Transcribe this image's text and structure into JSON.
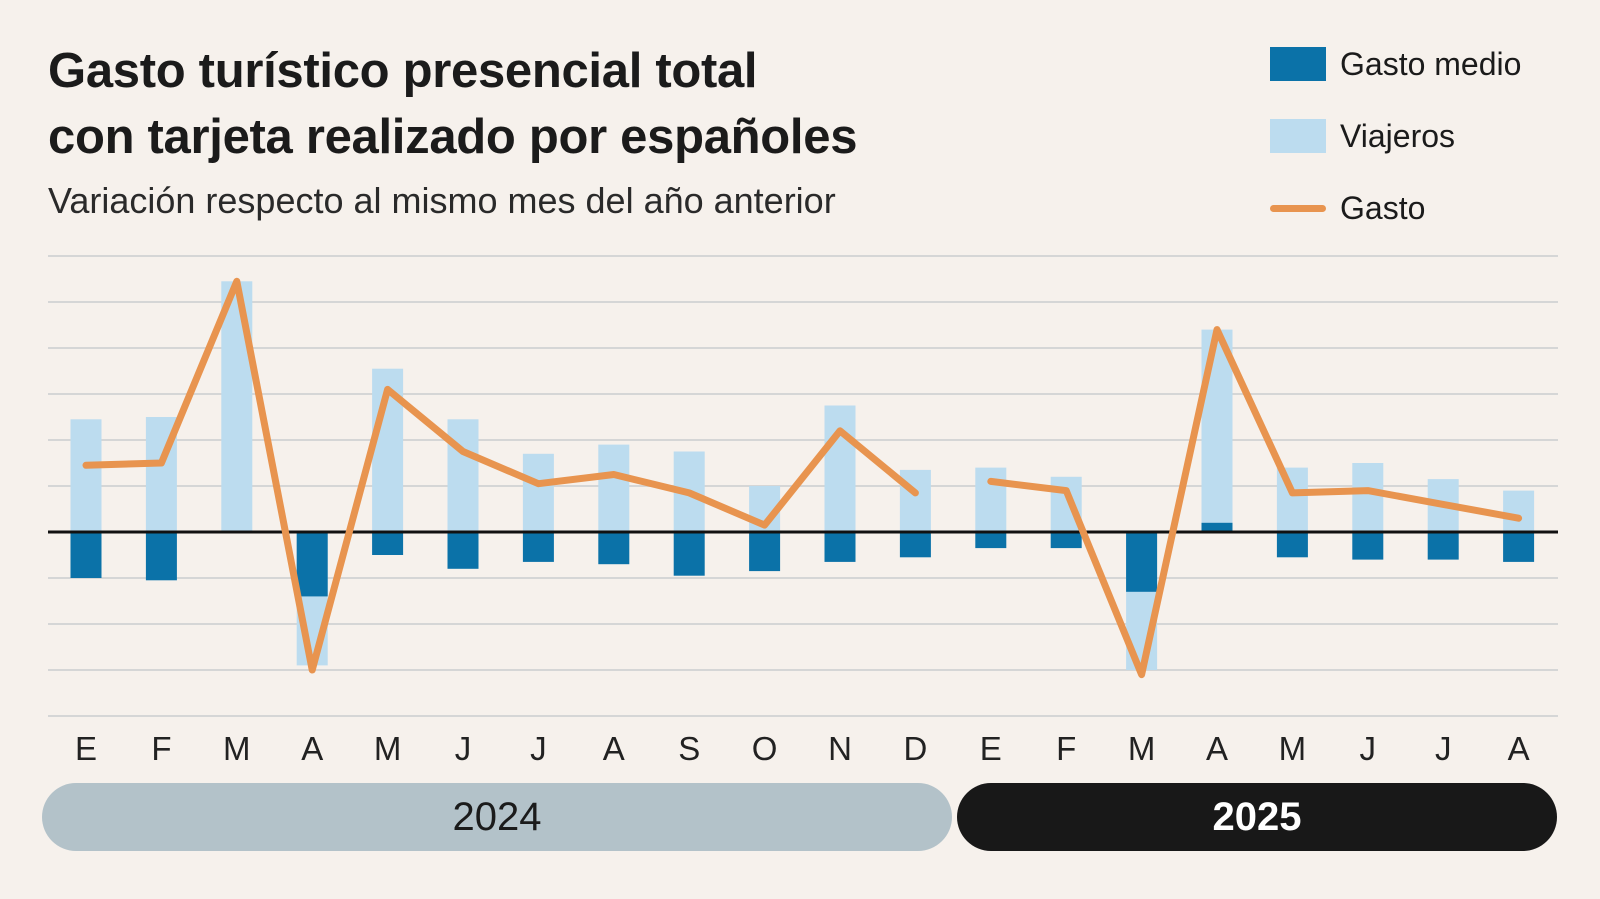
{
  "chart_data": {
    "type": "bar",
    "title_lines": [
      "Gasto turístico presencial total",
      "con tarjeta realizado por españoles"
    ],
    "subtitle": "Variación respecto al mismo mes del año anterior",
    "unit": "% variation (relative scale; axis values not labeled)",
    "ylim": [
      -4,
      6
    ],
    "gridlines": true,
    "legend_position": "top-right",
    "legend": [
      {
        "key": "gasto_medio",
        "label": "Gasto medio",
        "kind": "bar",
        "color": "#0b72a8"
      },
      {
        "key": "viajeros",
        "label": "Viajeros",
        "kind": "bar",
        "color": "#bcdcef"
      },
      {
        "key": "gasto",
        "label": "Gasto",
        "kind": "line",
        "color": "#e8944f"
      }
    ],
    "categories": [
      "E",
      "F",
      "M",
      "A",
      "M",
      "J",
      "J",
      "A",
      "S",
      "O",
      "N",
      "D",
      "E",
      "F",
      "M",
      "A",
      "M",
      "J",
      "J",
      "A"
    ],
    "year_groups": [
      {
        "label": "2024",
        "count": 12
      },
      {
        "label": "2025",
        "count": 8
      }
    ],
    "series": [
      {
        "key": "viajeros",
        "name": "Viajeros",
        "values": [
          2.45,
          2.5,
          5.45,
          -2.9,
          3.55,
          2.45,
          1.7,
          1.9,
          1.75,
          1.0,
          2.75,
          1.35,
          1.4,
          1.2,
          -3.0,
          4.4,
          1.4,
          1.5,
          1.15,
          0.9
        ]
      },
      {
        "key": "gasto_medio",
        "name": "Gasto medio",
        "values": [
          -1.0,
          -1.05,
          0,
          -1.4,
          -0.5,
          -0.8,
          -0.65,
          -0.7,
          -0.95,
          -0.85,
          -0.65,
          -0.55,
          -0.35,
          -0.35,
          -1.3,
          0.2,
          -0.55,
          -0.6,
          -0.6,
          -0.65
        ]
      },
      {
        "key": "gasto",
        "name": "Gasto",
        "values": [
          1.45,
          1.5,
          5.45,
          -3.0,
          3.1,
          1.75,
          1.05,
          1.25,
          0.85,
          0.15,
          2.2,
          0.85,
          1.1,
          0.9,
          -3.1,
          4.4,
          0.85,
          0.9,
          0.6,
          0.3
        ]
      }
    ]
  }
}
